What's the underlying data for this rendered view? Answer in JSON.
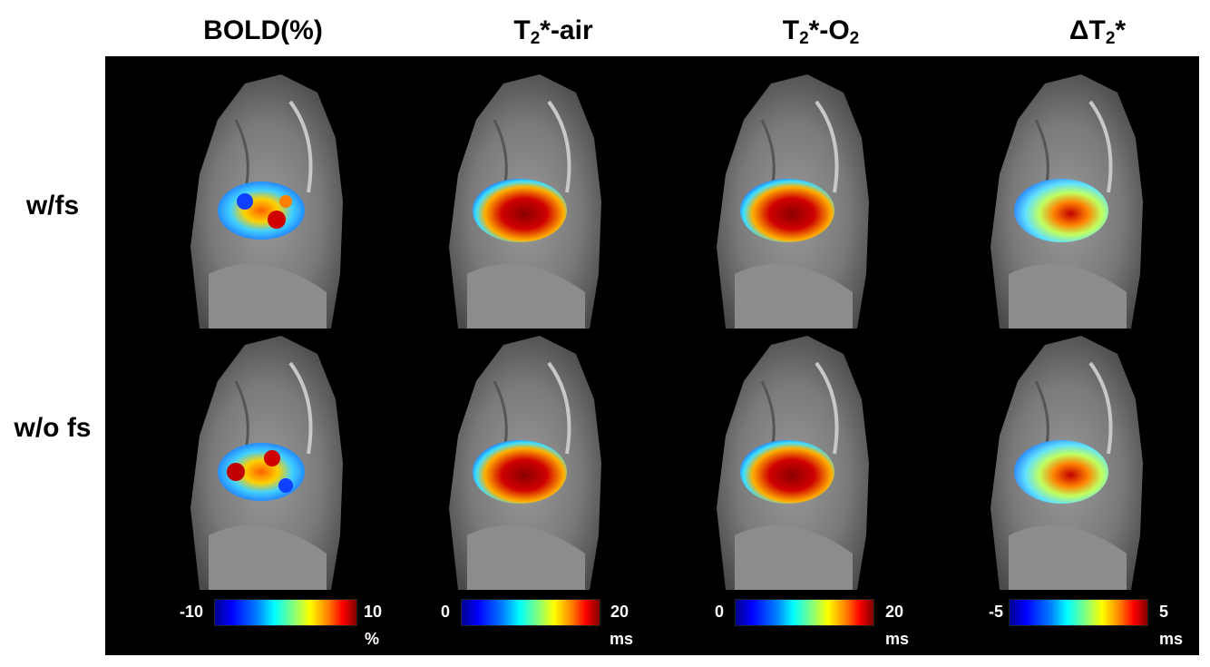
{
  "columns": [
    {
      "title": "BOLD(%)"
    },
    {
      "title_pre": "T",
      "title_sub": "2",
      "title_post": "*-air"
    },
    {
      "title_pre": "T",
      "title_sub": "2",
      "title_post": "*-O",
      "title_sub2": "2"
    },
    {
      "title_pre": "ΔT",
      "title_sub": "2",
      "title_post": "*"
    }
  ],
  "rows": [
    {
      "label": "w/fs"
    },
    {
      "label": "w/o fs"
    }
  ],
  "colorbars": [
    {
      "min": "-10",
      "max": "10",
      "unit": "%"
    },
    {
      "min": "0",
      "max": "20",
      "unit": "ms"
    },
    {
      "min": "0",
      "max": "20",
      "unit": "ms"
    },
    {
      "min": "-5",
      "max": "5",
      "unit": "ms"
    }
  ],
  "colors": {
    "background": "#ffffff",
    "panel": "#000000",
    "label_text": "#000000",
    "colorbar_text": "#ffffff",
    "colormap": [
      "#00008f",
      "#0000ff",
      "#00ffff",
      "#ffff00",
      "#ff0000",
      "#800000"
    ]
  }
}
